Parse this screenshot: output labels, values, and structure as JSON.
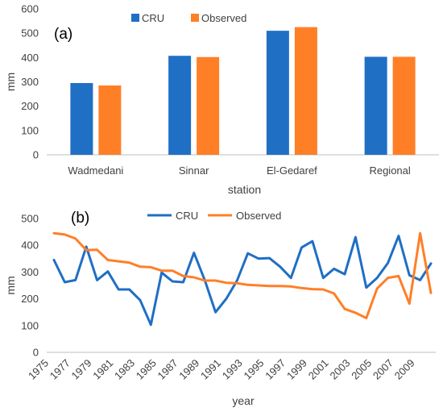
{
  "chart_data": [
    {
      "type": "bar",
      "panel_label": "(a)",
      "categories": [
        "Wadmedani",
        "Sinnar",
        "El-Gedaref",
        "Regional"
      ],
      "series": [
        {
          "name": "CRU",
          "color": "#1f6fc5",
          "values": [
            295,
            407,
            510,
            403
          ]
        },
        {
          "name": "Observed",
          "color": "#ff7f27",
          "values": [
            285,
            402,
            525,
            403
          ]
        }
      ],
      "xlabel": "station",
      "ylabel": "mm",
      "ylim": [
        0,
        600
      ],
      "yticks": [
        0,
        100,
        200,
        300,
        400,
        500,
        600
      ],
      "grid": false,
      "legend": "top-center"
    },
    {
      "type": "line",
      "panel_label": "(b)",
      "x": [
        1975,
        1976,
        1977,
        1978,
        1979,
        1980,
        1981,
        1982,
        1983,
        1984,
        1985,
        1986,
        1987,
        1988,
        1989,
        1990,
        1991,
        1992,
        1993,
        1994,
        1995,
        1996,
        1997,
        1998,
        1999,
        2000,
        2001,
        2002,
        2003,
        2004,
        2005,
        2006,
        2007,
        2008,
        2009,
        2010
      ],
      "xticks": [
        "1975",
        "1977",
        "1979",
        "1981",
        "1983",
        "1985",
        "1987",
        "1989",
        "1991",
        "1993",
        "1995",
        "1997",
        "1999",
        "2001",
        "2003",
        "2005",
        "2007",
        "2009"
      ],
      "series": [
        {
          "name": "CRU",
          "color": "#1f6fc5",
          "values": [
            345,
            262,
            270,
            395,
            270,
            302,
            235,
            235,
            195,
            103,
            298,
            265,
            262,
            372,
            270,
            150,
            200,
            268,
            370,
            350,
            352,
            320,
            278,
            392,
            415,
            278,
            312,
            292,
            430,
            242,
            278,
            333,
            435,
            288,
            270,
            332
          ]
        },
        {
          "name": "Observed",
          "color": "#ff7f27",
          "values": [
            445,
            440,
            425,
            382,
            383,
            345,
            340,
            335,
            320,
            318,
            305,
            305,
            285,
            280,
            268,
            268,
            260,
            258,
            252,
            250,
            248,
            248,
            246,
            240,
            236,
            235,
            220,
            162,
            148,
            128,
            238,
            278,
            285,
            182,
            445,
            222
          ]
        }
      ],
      "xlabel": "year",
      "ylabel": "mm",
      "ylim": [
        0,
        500
      ],
      "yticks": [
        0,
        100,
        200,
        300,
        400,
        500
      ],
      "grid": false,
      "legend": "top-center"
    }
  ]
}
